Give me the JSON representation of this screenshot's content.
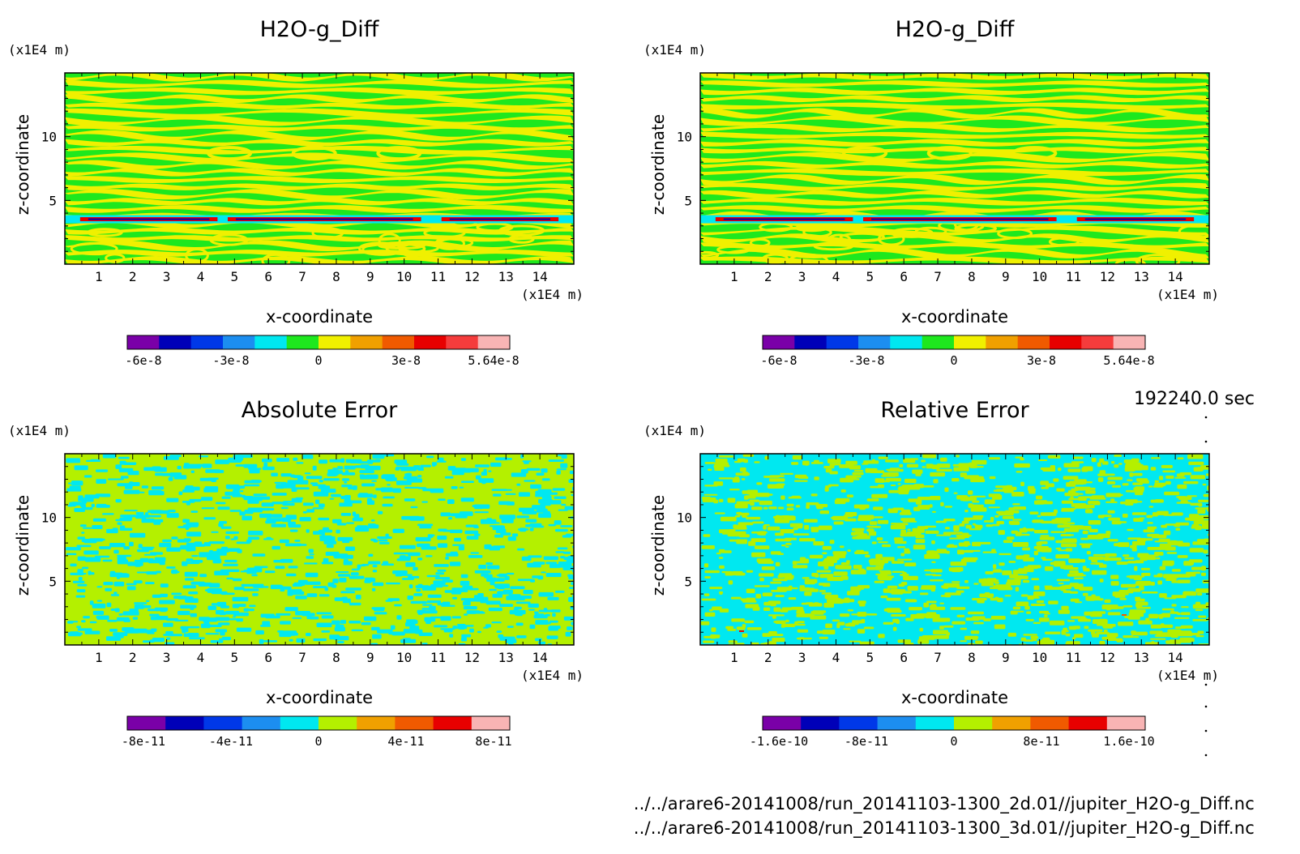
{
  "time_label": "192240.0 sec",
  "footer": {
    "file_a": "../../arare6-20141008/run_20141103-1300_2d.01//jupiter_H2O-g_Diff.nc",
    "file_b": "../../arare6-20141008/run_20141103-1300_3d.01//jupiter_H2O-g_Diff.nc"
  },
  "chart_data": [
    {
      "type": "heatmap",
      "title": "H2O-g_Diff",
      "xlabel": "x-coordinate",
      "ylabel": "z-coordinate",
      "x_unit": "(x1E4 m)",
      "y_unit": "(x1E4 m)",
      "xlim": [
        0,
        15
      ],
      "ylim": [
        0,
        15
      ],
      "x_ticks": [
        "1",
        "2",
        "3",
        "4",
        "5",
        "6",
        "7",
        "8",
        "9",
        "10",
        "11",
        "12",
        "13",
        "14"
      ],
      "y_ticks": [
        "5",
        "10"
      ],
      "colorbar": {
        "colors": [
          "#7a00a8",
          "#0000b8",
          "#0038e8",
          "#1c8ef0",
          "#00e8f0",
          "#1ee81e",
          "#f0f000",
          "#f0a000",
          "#f05a00",
          "#e80000",
          "#f53c3c",
          "#f8b4b4"
        ],
        "tick_labels": [
          "-6e-8",
          "-3e-8",
          "0",
          "3e-8",
          "5.64e-8"
        ]
      },
      "pattern": "bands"
    },
    {
      "type": "heatmap",
      "title": "H2O-g_Diff",
      "xlabel": "x-coordinate",
      "ylabel": "z-coordinate",
      "x_unit": "(x1E4 m)",
      "y_unit": "(x1E4 m)",
      "xlim": [
        0,
        15
      ],
      "ylim": [
        0,
        15
      ],
      "x_ticks": [
        "1",
        "2",
        "3",
        "4",
        "5",
        "6",
        "7",
        "8",
        "9",
        "10",
        "11",
        "12",
        "13",
        "14"
      ],
      "y_ticks": [
        "5",
        "10"
      ],
      "colorbar": {
        "colors": [
          "#7a00a8",
          "#0000b8",
          "#0038e8",
          "#1c8ef0",
          "#00e8f0",
          "#1ee81e",
          "#f0f000",
          "#f0a000",
          "#f05a00",
          "#e80000",
          "#f53c3c",
          "#f8b4b4"
        ],
        "tick_labels": [
          "-6e-8",
          "-3e-8",
          "0",
          "3e-8",
          "5.64e-8"
        ]
      },
      "pattern": "bands"
    },
    {
      "type": "heatmap",
      "title": "Absolute Error",
      "xlabel": "x-coordinate",
      "ylabel": "z-coordinate",
      "x_unit": "(x1E4 m)",
      "y_unit": "(x1E4 m)",
      "xlim": [
        0,
        15
      ],
      "ylim": [
        0,
        15
      ],
      "x_ticks": [
        "1",
        "2",
        "3",
        "4",
        "5",
        "6",
        "7",
        "8",
        "9",
        "10",
        "11",
        "12",
        "13",
        "14"
      ],
      "y_ticks": [
        "5",
        "10"
      ],
      "colorbar": {
        "colors": [
          "#7a00a8",
          "#0000b8",
          "#0038e8",
          "#1c8ef0",
          "#00e8f0",
          "#b4f000",
          "#f0a000",
          "#f05a00",
          "#e80000",
          "#f8b4b4"
        ],
        "tick_labels": [
          "-8e-11",
          "-4e-11",
          "0",
          "4e-11",
          "8e-11"
        ]
      },
      "pattern": "noise"
    },
    {
      "type": "heatmap",
      "title": "Relative Error",
      "xlabel": "x-coordinate",
      "ylabel": "z-coordinate",
      "x_unit": "(x1E4 m)",
      "y_unit": "(x1E4 m)",
      "xlim": [
        0,
        15
      ],
      "ylim": [
        0,
        15
      ],
      "x_ticks": [
        "1",
        "2",
        "3",
        "4",
        "5",
        "6",
        "7",
        "8",
        "9",
        "10",
        "11",
        "12",
        "13",
        "14"
      ],
      "y_ticks": [
        "5",
        "10"
      ],
      "colorbar": {
        "colors": [
          "#7a00a8",
          "#0000b8",
          "#0038e8",
          "#1c8ef0",
          "#00e8f0",
          "#b4f000",
          "#f0a000",
          "#f05a00",
          "#e80000",
          "#f8b4b4"
        ],
        "tick_labels": [
          "-1.6e-10",
          "-8e-11",
          "0",
          "8e-11",
          "1.6e-10"
        ]
      },
      "pattern": "noise2"
    }
  ]
}
